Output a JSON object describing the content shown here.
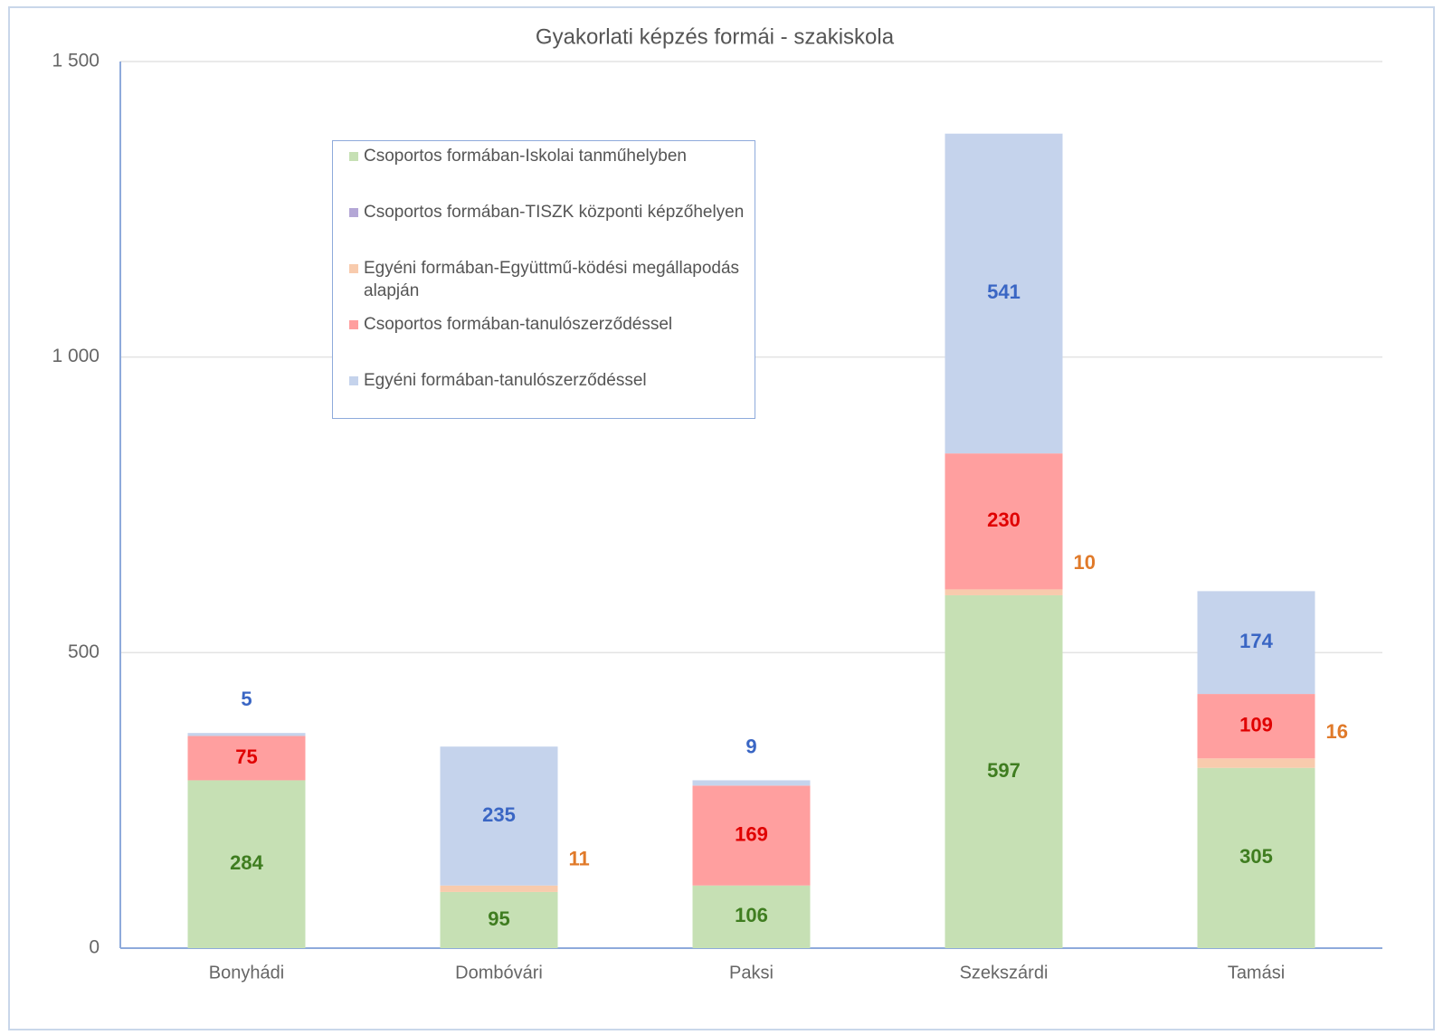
{
  "chart_data": {
    "type": "stacked-bar",
    "title": "Gyakorlati képzés formái - szakiskola",
    "categories": [
      "Bonyhádi",
      "Dombóvári",
      "Paksi",
      "Szekszárdi",
      "Tamási"
    ],
    "series": [
      {
        "name": "Csoportos formában-Iskolai tanműhelyben",
        "color": "#c6e0b4",
        "label_color": "#3f7d20",
        "values": [
          284,
          95,
          106,
          597,
          305
        ]
      },
      {
        "name": "Csoportos formában-TISZK központi képzőhelyen",
        "color": "#b4a7d6",
        "label_color": "#7030a0",
        "values": [
          null,
          null,
          null,
          null,
          null
        ]
      },
      {
        "name": "Egyéni formában-Együttmű-ködési megállapodás alapján",
        "color": "#f8cbad",
        "label_color": "#e07a2a",
        "values": [
          null,
          11,
          null,
          10,
          16
        ]
      },
      {
        "name": "Csoportos formában-tanulószerződéssel",
        "color": "#ff9f9f",
        "label_color": "#e00000",
        "values": [
          75,
          null,
          169,
          230,
          109
        ]
      },
      {
        "name": "Egyéni formában-tanulószerződéssel",
        "color": "#c5d3ec",
        "label_color": "#3a66c4",
        "values": [
          5,
          235,
          9,
          541,
          174
        ]
      }
    ],
    "ylim": [
      0,
      1500
    ],
    "yticks": [
      0,
      500,
      {
        "value": 1000,
        "label": "1 000"
      },
      {
        "value": 1500,
        "label": "1 500"
      }
    ],
    "grid": true
  }
}
